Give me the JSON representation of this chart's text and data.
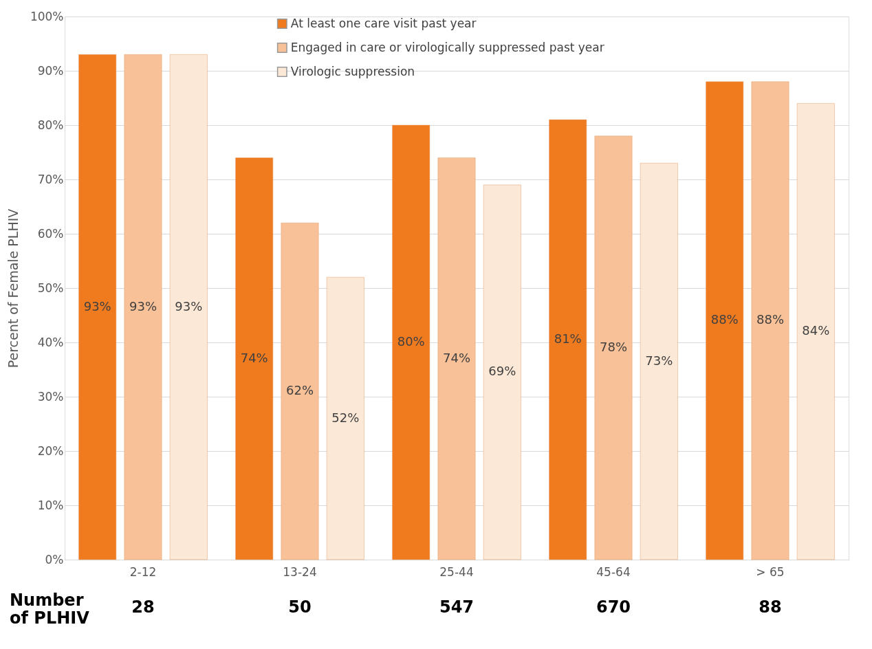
{
  "chart_data": {
    "type": "bar",
    "ylabel": "Percent of Female PLHIV",
    "categories": [
      "2-12",
      "13-24",
      "25-44",
      "45-64",
      "> 65"
    ],
    "series": [
      {
        "name": "At least one care visit past year",
        "color": "#f07b1f",
        "values": [
          93,
          74,
          80,
          81,
          88
        ],
        "value_labels": [
          "93%",
          "74%",
          "80%",
          "81%",
          "88%"
        ]
      },
      {
        "name": "Engaged in care or virologically suppressed past year",
        "color": "#f8c197",
        "values": [
          93,
          62,
          74,
          78,
          88
        ],
        "value_labels": [
          "93%",
          "62%",
          "74%",
          "78%",
          "88%"
        ]
      },
      {
        "name": "Virologic suppression",
        "color": "#fce8d6",
        "values": [
          93,
          52,
          69,
          73,
          84
        ],
        "value_labels": [
          "93%",
          "52%",
          "69%",
          "73%",
          "84%"
        ]
      }
    ],
    "ylim": [
      0,
      100
    ],
    "yticks": [
      {
        "value": 0,
        "label": "0%"
      },
      {
        "value": 10,
        "label": "10%"
      },
      {
        "value": 20,
        "label": "20%"
      },
      {
        "value": 30,
        "label": "30%"
      },
      {
        "value": 40,
        "label": "40%"
      },
      {
        "value": 50,
        "label": "50%"
      },
      {
        "value": 60,
        "label": "60%"
      },
      {
        "value": 70,
        "label": "70%"
      },
      {
        "value": 80,
        "label": "80%"
      },
      {
        "value": 90,
        "label": "90%"
      },
      {
        "value": 100,
        "label": "100%"
      }
    ],
    "grid": "y",
    "legend": "top",
    "annotations": [
      "Number\nof PLHIV",
      "28",
      "50",
      "547",
      "670",
      "88"
    ]
  }
}
